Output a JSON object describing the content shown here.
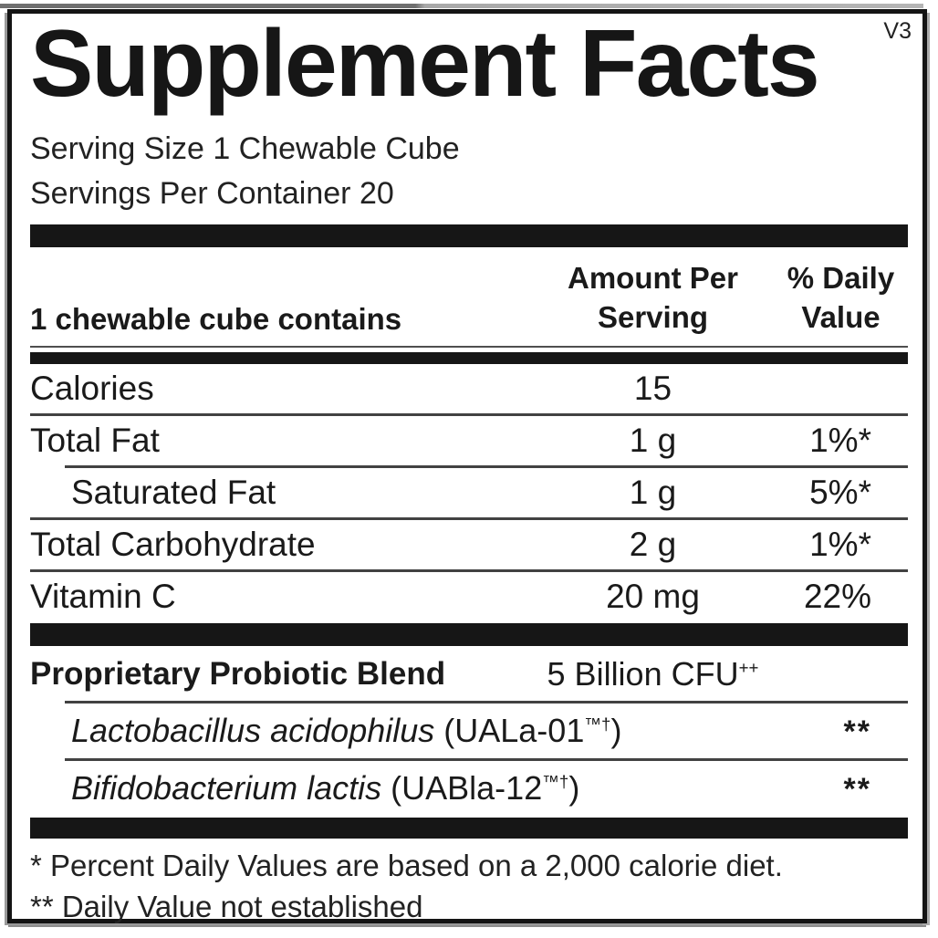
{
  "version": "V3",
  "title": "Supplement Facts",
  "serving": {
    "size_label": "Serving Size 1 Chewable Cube",
    "per_container_label": "Servings Per Container 20"
  },
  "table": {
    "header": {
      "contains_label": "1 chewable cube contains",
      "amount_line1": "Amount Per",
      "amount_line2": "Serving",
      "dv_line1": "% Daily",
      "dv_line2": "Value"
    },
    "nutrients": [
      {
        "name": "Calories",
        "amount": "15",
        "daily_value": "",
        "indent": false
      },
      {
        "name": "Total Fat",
        "amount": "1 g",
        "daily_value": "1%*",
        "indent": false
      },
      {
        "name": "Saturated Fat",
        "amount": "1 g",
        "daily_value": "5%*",
        "indent": true
      },
      {
        "name": "Total Carbohydrate",
        "amount": "2 g",
        "daily_value": "1%*",
        "indent": false
      },
      {
        "name": "Vitamin C",
        "amount": "20 mg",
        "daily_value": "22%",
        "indent": false
      }
    ],
    "blend": {
      "name": "Proprietary Probiotic Blend",
      "amount": "5 Billion CFU",
      "amount_superscript": "++",
      "ingredients": [
        {
          "species": "Lactobacillus acidophilus",
          "strain_prefix": "(UALa-01",
          "strain_superscript": "™†",
          "strain_suffix": ")",
          "daily_value": "**"
        },
        {
          "species": "Bifidobacterium lactis",
          "strain_prefix": "(UABla-12",
          "strain_superscript": "™†",
          "strain_suffix": ")",
          "daily_value": "**"
        }
      ]
    }
  },
  "footnotes": [
    "* Percent Daily Values are based on a 2,000 calorie diet.",
    "** Daily Value not established"
  ],
  "colors": {
    "text": "#1a1a1a",
    "rule_thick": "#161616",
    "rule_thin": "#424242",
    "background": "#ffffff"
  }
}
